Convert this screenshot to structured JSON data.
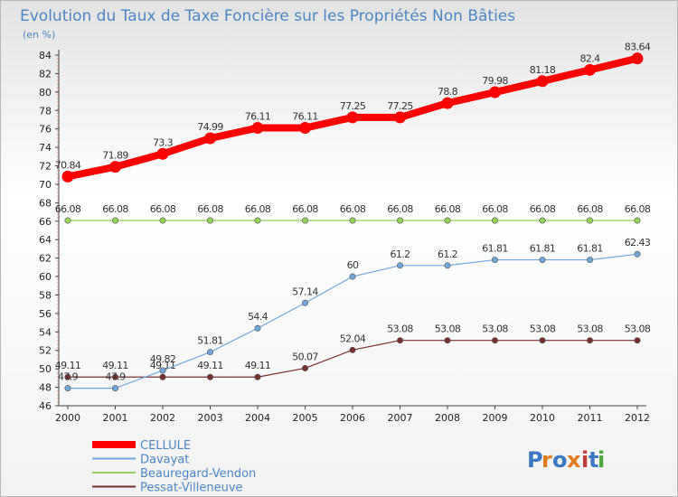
{
  "title": "Evolution du Taux de Taxe Foncière sur les Propriétés Non Bâties",
  "subtitle": "(en %)",
  "logo": "Proxiti",
  "chart_data": {
    "type": "line",
    "title": "Evolution du Taux de Taxe Foncière sur les Propriétés Non Bâties",
    "ylabel": "(en %)",
    "xlabel": "",
    "ylim": [
      46,
      84
    ],
    "y_ticks": [
      46,
      48,
      50,
      52,
      54,
      56,
      58,
      60,
      62,
      64,
      66,
      68,
      70,
      72,
      74,
      76,
      78,
      80,
      82,
      84
    ],
    "grid": false,
    "legend_position": "bottom-left",
    "categories": [
      "2000",
      "2001",
      "2002",
      "2003",
      "2004",
      "2005",
      "2006",
      "2007",
      "2008",
      "2009",
      "2010",
      "2011",
      "2012"
    ],
    "series": [
      {
        "name": "CELLULE",
        "color": "#ff0000",
        "width": 8,
        "values": [
          70.84,
          71.89,
          73.3,
          74.99,
          76.11,
          76.11,
          77.25,
          77.25,
          78.8,
          79.98,
          81.18,
          82.4,
          83.64
        ],
        "labels": [
          "70.84",
          "71.89",
          "73.3",
          "74.99",
          "76.11",
          "76.11",
          "77.25",
          "77.25",
          "78.8",
          "79.98",
          "81.18",
          "82.4",
          "83.64"
        ]
      },
      {
        "name": "Davayat",
        "color": "#6fa8dc",
        "width": 1.2,
        "values": [
          47.9,
          47.9,
          49.82,
          51.81,
          54.4,
          57.14,
          60,
          61.2,
          61.2,
          61.81,
          61.81,
          61.81,
          62.43
        ],
        "labels": [
          "47.9",
          "47.9",
          "49.82",
          "51.81",
          "54.4",
          "57.14",
          "60",
          "61.2",
          "61.2",
          "61.81",
          "61.81",
          "61.81",
          "62.43"
        ]
      },
      {
        "name": "Beauregard-Vendon",
        "color": "#93d35b",
        "width": 1.2,
        "values": [
          66.08,
          66.08,
          66.08,
          66.08,
          66.08,
          66.08,
          66.08,
          66.08,
          66.08,
          66.08,
          66.08,
          66.08,
          66.08
        ],
        "labels": [
          "66.08",
          "66.08",
          "66.08",
          "66.08",
          "66.08",
          "66.08",
          "66.08",
          "66.08",
          "66.08",
          "66.08",
          "66.08",
          "66.08",
          "66.08"
        ]
      },
      {
        "name": "Pessat-Villeneuve",
        "color": "#7b2e2e",
        "width": 1.2,
        "values": [
          49.11,
          49.11,
          49.11,
          49.11,
          49.11,
          50.07,
          52.04,
          53.08,
          53.08,
          53.08,
          53.08,
          53.08,
          53.08
        ],
        "labels": [
          "49.11",
          "49.11",
          "49.11",
          "49.11",
          "49.11",
          "50.07",
          "52.04",
          "53.08",
          "53.08",
          "53.08",
          "53.08",
          "53.08",
          "53.08"
        ]
      }
    ]
  }
}
